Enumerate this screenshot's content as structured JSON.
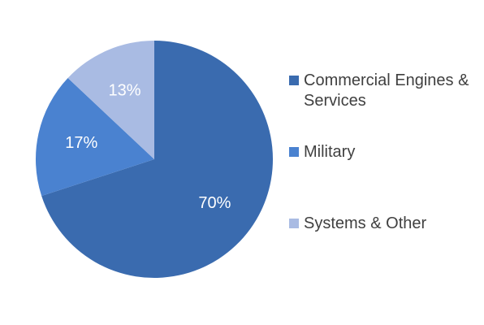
{
  "chart_data": {
    "type": "pie",
    "title": "",
    "categories": [
      "Commercial Engines & Services",
      "Military",
      "Systems & Other"
    ],
    "values": [
      70,
      17,
      13
    ],
    "labels": [
      "70%",
      "17%",
      "13%"
    ],
    "colors": [
      "#3A6BAF",
      "#4A82D0",
      "#A9BBE3"
    ],
    "start_angle_deg": 0,
    "direction": "clockwise",
    "legend": "right"
  }
}
